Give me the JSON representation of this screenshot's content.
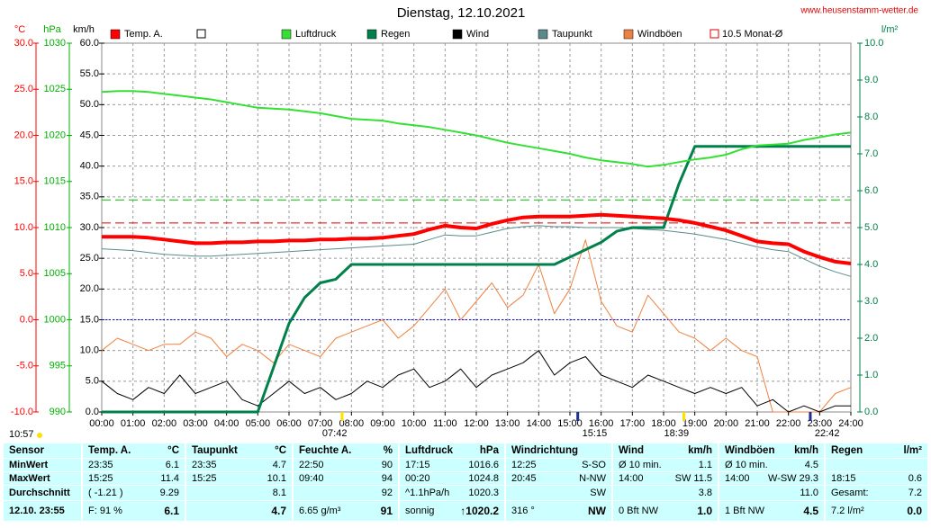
{
  "chart_data": {
    "type": "line",
    "title": "Dienstag, 12.10.2021",
    "site": "www.heusenstamm-wetter.de",
    "units": {
      "y3": "°C",
      "y4": "hPa",
      "y": "km/h",
      "y2": "l/m²"
    },
    "x": [
      0,
      0.5,
      1,
      1.5,
      2,
      2.5,
      3,
      3.5,
      4,
      4.5,
      5,
      5.5,
      6,
      6.5,
      7,
      7.5,
      8,
      8.5,
      9,
      9.5,
      10,
      10.5,
      11,
      11.5,
      12,
      12.5,
      13,
      13.5,
      14,
      14.5,
      15,
      15.5,
      16,
      16.5,
      17,
      17.5,
      18,
      18.5,
      19,
      19.5,
      20,
      20.5,
      21,
      21.5,
      22,
      22.5,
      23,
      23.5,
      24
    ],
    "xlim": [
      0,
      24
    ],
    "xticks": [
      {
        "value": 0,
        "label": "00:00"
      },
      {
        "value": 1,
        "label": "01:00"
      },
      {
        "value": 2,
        "label": "02:00"
      },
      {
        "value": 3,
        "label": "03:00"
      },
      {
        "value": 4,
        "label": "04:00"
      },
      {
        "value": 5,
        "label": "05:00"
      },
      {
        "value": 6,
        "label": "06:00"
      },
      {
        "value": 7,
        "label": "07:00"
      },
      {
        "value": 8,
        "label": "08:00"
      },
      {
        "value": 9,
        "label": "09:00"
      },
      {
        "value": 10,
        "label": "10:00"
      },
      {
        "value": 11,
        "label": "11:00"
      },
      {
        "value": 12,
        "label": "12:00"
      },
      {
        "value": 13,
        "label": "13:00"
      },
      {
        "value": 14,
        "label": "14:00"
      },
      {
        "value": 15,
        "label": "15:00"
      },
      {
        "value": 16,
        "label": "16:00"
      },
      {
        "value": 17,
        "label": "17:00"
      },
      {
        "value": 18,
        "label": "18:00"
      },
      {
        "value": 19,
        "label": "19:00"
      },
      {
        "value": 20,
        "label": "20:00"
      },
      {
        "value": 21,
        "label": "21:00"
      },
      {
        "value": 22,
        "label": "22:00"
      },
      {
        "value": 23,
        "label": "23:00"
      },
      {
        "value": 24,
        "label": "24:00"
      }
    ],
    "ylim": [
      0,
      60
    ],
    "yticks": [
      {
        "value": 0,
        "label": "0.0"
      },
      {
        "value": 5,
        "label": "5.0"
      },
      {
        "value": 10,
        "label": "10.0"
      },
      {
        "value": 15,
        "label": "15.0"
      },
      {
        "value": 20,
        "label": "20.0"
      },
      {
        "value": 25,
        "label": "25.0"
      },
      {
        "value": 30,
        "label": "30.0"
      },
      {
        "value": 35,
        "label": "35.0"
      },
      {
        "value": 40,
        "label": "40.0"
      },
      {
        "value": 45,
        "label": "45.0"
      },
      {
        "value": 50,
        "label": "50.0"
      },
      {
        "value": 55,
        "label": "55.0"
      },
      {
        "value": 60,
        "label": "60.0"
      }
    ],
    "y2lim": [
      0,
      10
    ],
    "y2ticks": [
      {
        "value": 0,
        "label": "0.0"
      },
      {
        "value": 1,
        "label": "1.0"
      },
      {
        "value": 2,
        "label": "2.0"
      },
      {
        "value": 3,
        "label": "3.0"
      },
      {
        "value": 4,
        "label": "4.0"
      },
      {
        "value": 5,
        "label": "5.0"
      },
      {
        "value": 6,
        "label": "6.0"
      },
      {
        "value": 7,
        "label": "7.0"
      },
      {
        "value": 8,
        "label": "8.0"
      },
      {
        "value": 9,
        "label": "9.0"
      },
      {
        "value": 10,
        "label": "10.0"
      }
    ],
    "y3lim": [
      -10,
      30
    ],
    "y3ticks": [
      {
        "value": -10,
        "label": "-10.0"
      },
      {
        "value": -5,
        "label": "-5.0"
      },
      {
        "value": 0,
        "label": "0.0"
      },
      {
        "value": 5,
        "label": "5.0"
      },
      {
        "value": 10,
        "label": "10.0"
      },
      {
        "value": 15,
        "label": "15.0"
      },
      {
        "value": 20,
        "label": "20.0"
      },
      {
        "value": 25,
        "label": "25.0"
      },
      {
        "value": 30,
        "label": "30.0"
      }
    ],
    "y4lim": [
      990,
      1030
    ],
    "y4ticks": [
      990,
      995,
      1000,
      1005,
      1010,
      1015,
      1020,
      1025,
      1030
    ],
    "grid": true,
    "series": [
      {
        "name": "Temp. A.",
        "color": "#ff0000",
        "axis": "y3",
        "line_width": 4,
        "values": [
          9.0,
          9.0,
          9.0,
          8.9,
          8.7,
          8.5,
          8.3,
          8.3,
          8.4,
          8.4,
          8.5,
          8.5,
          8.6,
          8.6,
          8.7,
          8.7,
          8.8,
          8.8,
          8.9,
          9.1,
          9.3,
          9.8,
          10.2,
          10.0,
          9.9,
          10.4,
          10.8,
          11.1,
          11.2,
          11.2,
          11.2,
          11.3,
          11.4,
          11.3,
          11.2,
          11.1,
          11.0,
          10.8,
          10.5,
          10.1,
          9.7,
          9.1,
          8.5,
          8.3,
          8.2,
          7.4,
          6.8,
          6.3,
          6.1
        ]
      },
      {
        "name": "Luftdruck",
        "color": "#33e033",
        "axis": "y4",
        "line_width": 2,
        "values": [
          1024.7,
          1024.8,
          1024.8,
          1024.7,
          1024.5,
          1024.3,
          1024.1,
          1023.9,
          1023.6,
          1023.3,
          1023.0,
          1022.9,
          1022.8,
          1022.6,
          1022.4,
          1022.1,
          1021.8,
          1021.7,
          1021.6,
          1021.3,
          1021.1,
          1020.9,
          1020.6,
          1020.3,
          1020.0,
          1019.6,
          1019.2,
          1018.9,
          1018.6,
          1018.3,
          1018.0,
          1017.6,
          1017.3,
          1017.1,
          1016.9,
          1016.6,
          1016.8,
          1017.1,
          1017.4,
          1017.6,
          1017.9,
          1018.5,
          1018.9,
          1019.0,
          1019.1,
          1019.5,
          1019.8,
          1020.1,
          1020.3
        ]
      },
      {
        "name": "Regen",
        "color": "#00804a",
        "axis": "y2",
        "line_width": 3,
        "values": [
          0,
          0,
          0,
          0,
          0,
          0,
          0,
          0,
          0,
          0,
          0,
          1.2,
          2.4,
          3.1,
          3.5,
          3.6,
          4.0,
          4.0,
          4.0,
          4.0,
          4.0,
          4.0,
          4.0,
          4.0,
          4.0,
          4.0,
          4.0,
          4.0,
          4.0,
          4.0,
          4.2,
          4.4,
          4.6,
          4.9,
          5.0,
          5.0,
          5.0,
          6.2,
          7.2,
          7.2,
          7.2,
          7.2,
          7.2,
          7.2,
          7.2,
          7.2,
          7.2,
          7.2,
          7.2
        ]
      },
      {
        "name": "Wind",
        "color": "#000000",
        "axis": "y",
        "line_width": 1,
        "values": [
          5,
          3,
          2,
          4,
          3,
          6,
          3,
          4,
          5,
          2,
          1,
          3,
          5,
          3,
          4,
          2,
          3,
          5,
          4,
          6,
          7,
          4,
          5,
          7,
          4,
          6,
          7,
          8,
          10,
          6,
          8,
          9,
          6,
          5,
          4,
          6,
          5,
          4,
          3,
          4,
          3,
          4,
          1,
          2,
          0,
          1,
          0,
          1,
          1
        ]
      },
      {
        "name": "Taupunkt",
        "color": "#5a8a8a",
        "axis": "y3",
        "line_width": 1,
        "values": [
          7.7,
          7.6,
          7.5,
          7.3,
          7.1,
          7.0,
          6.9,
          6.9,
          7.0,
          7.1,
          7.2,
          7.3,
          7.4,
          7.5,
          7.6,
          7.7,
          7.8,
          7.9,
          8.0,
          8.1,
          8.2,
          8.7,
          9.2,
          9.1,
          9.1,
          9.5,
          9.9,
          10.1,
          10.2,
          10.1,
          10.1,
          10.0,
          10.0,
          10.0,
          9.9,
          9.8,
          9.7,
          9.5,
          9.3,
          9.0,
          8.7,
          8.3,
          7.9,
          7.6,
          7.4,
          6.6,
          5.8,
          5.2,
          4.7
        ]
      },
      {
        "name": "Windböen",
        "color": "#f08040",
        "axis": "y",
        "line_width": 1,
        "values": [
          10,
          12,
          11,
          10,
          11,
          11,
          13,
          12,
          9,
          11,
          10,
          8,
          11,
          10,
          9,
          12,
          13,
          14,
          15,
          12,
          14,
          17,
          20,
          15,
          18,
          21,
          17,
          19,
          24,
          16,
          20,
          28,
          18,
          14,
          13,
          19,
          16,
          13,
          12,
          10,
          12,
          10,
          9,
          0,
          0,
          0,
          0,
          3,
          4
        ]
      }
    ],
    "monthly_mean": {
      "label": "10.5 Monat-Ø",
      "value": 10.5,
      "axis": "y3",
      "color": "#e00000"
    },
    "reference_lines": [
      {
        "axis": "y4",
        "value": 1013,
        "color": "#00c000"
      },
      {
        "axis": "y3",
        "value": 0,
        "color": "#0000ff"
      }
    ],
    "astro": {
      "daylength": "10:57",
      "sunrise": "07:42",
      "sunset": "18:39",
      "moonrise": "15:15",
      "moonset": "22:42"
    }
  },
  "table": {
    "header": [
      {
        "l": "Sensor"
      },
      {
        "l": "Temp. A.",
        "r": "°C"
      },
      {
        "l": "Taupunkt",
        "r": "°C"
      },
      {
        "l": "Feuchte A.",
        "r": "%"
      },
      {
        "l": "Luftdruck",
        "r": "hPa"
      },
      {
        "l": "Windrichtung"
      },
      {
        "l": "Wind",
        "r": "km/h"
      },
      {
        "l": "Windböen",
        "r": "km/h"
      },
      {
        "l": "Regen",
        "r": "l/m²"
      }
    ],
    "rows": [
      [
        {
          "l": "MinWert"
        },
        {
          "l": "23:35",
          "r": "6.1"
        },
        {
          "l": "23:35",
          "r": "4.7"
        },
        {
          "l": "22:50",
          "r": "90"
        },
        {
          "l": "17:15",
          "r": "1016.6"
        },
        {
          "l": "12:25",
          "r": "S-SO"
        },
        {
          "l": "Ø 10 min.",
          "r": "1.1"
        },
        {
          "l": "Ø 10 min.",
          "r": "4.5"
        },
        {}
      ],
      [
        {
          "l": "MaxWert"
        },
        {
          "l": "15:25",
          "r": "11.4"
        },
        {
          "l": "15:25",
          "r": "10.1"
        },
        {
          "l": "09:40",
          "r": "94"
        },
        {
          "l": "00:20",
          "r": "1024.8"
        },
        {
          "l": "20:45",
          "r": "N-NW"
        },
        {
          "l": "14:00",
          "r": "SW 11.5"
        },
        {
          "l": "14:00",
          "r": "W-SW 29.3"
        },
        {
          "l": "18:15",
          "r": "0.6"
        }
      ],
      [
        {
          "l": "Durchschnitt"
        },
        {
          "l": "( -1.21 )",
          "r": "9.29"
        },
        {
          "r": "8.1"
        },
        {
          "r": "92"
        },
        {
          "l": "^1.1hPa/h",
          "r": "1020.3"
        },
        {
          "r": "SW"
        },
        {
          "r": "3.8"
        },
        {
          "r": "11.0"
        },
        {
          "l": "Gesamt:",
          "r": "7.2"
        }
      ],
      [
        {
          "l": "12.10. 23:55"
        },
        {
          "l": "F: 91 %",
          "r": "6.1"
        },
        {
          "r": "4.7"
        },
        {
          "l": "6.65 g/m³",
          "r": "91"
        },
        {
          "l": "sonnig",
          "r": "↑1020.2"
        },
        {
          "l": "316 °",
          "r": "NW"
        },
        {
          "l": "0 Bft NW",
          "r": "1.0"
        },
        {
          "l": "1 Bft NW",
          "r": "4.5"
        },
        {
          "l": "7.2 l/m²",
          "r": "0.0"
        }
      ]
    ]
  }
}
